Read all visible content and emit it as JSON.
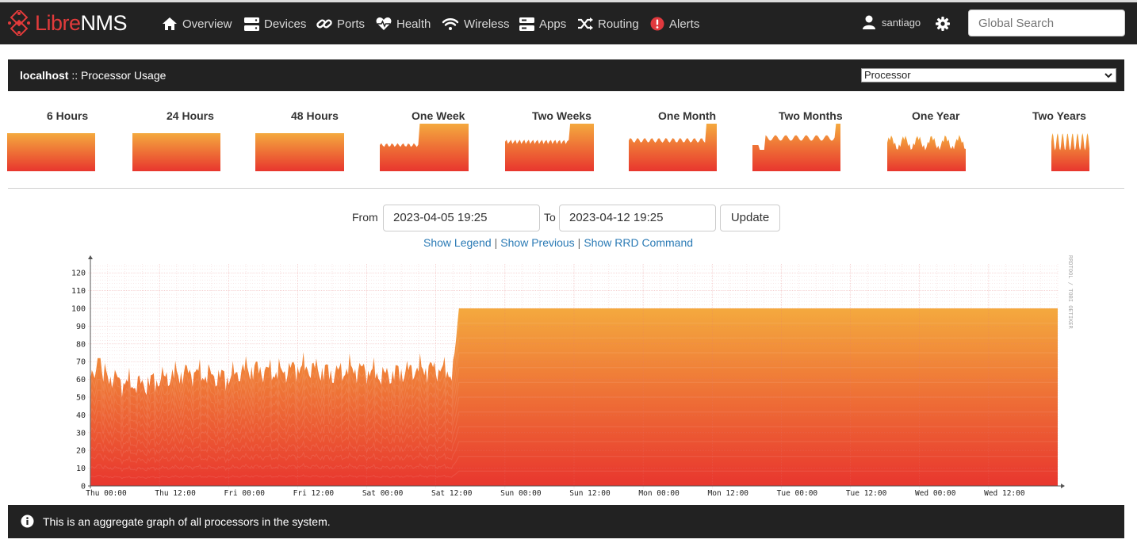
{
  "navbar": {
    "brand_libre": "Libre",
    "brand_nms": "NMS",
    "items": [
      {
        "label": "Overview",
        "icon": "home-icon"
      },
      {
        "label": "Devices",
        "icon": "server-icon"
      },
      {
        "label": "Ports",
        "icon": "link-icon"
      },
      {
        "label": "Health",
        "icon": "heartbeat-icon"
      },
      {
        "label": "Wireless",
        "icon": "wifi-icon"
      },
      {
        "label": "Apps",
        "icon": "apps-icon"
      },
      {
        "label": "Routing",
        "icon": "random-icon"
      },
      {
        "label": "Alerts",
        "icon": "alert-icon"
      }
    ],
    "user": "santiago",
    "search_placeholder": "Global Search"
  },
  "panel": {
    "host": "localhost",
    "separator": " :: ",
    "title": "Processor Usage",
    "select_value": "Processor"
  },
  "periods": [
    "6 Hours",
    "24 Hours",
    "48 Hours",
    "One Week",
    "Two Weeks",
    "One Month",
    "Two Months",
    "One Year",
    "Two Years"
  ],
  "form": {
    "from_label": "From",
    "from_value": "2023-04-05 19:25",
    "to_label": "To",
    "to_value": "2023-04-12 19:25",
    "update_label": "Update"
  },
  "links": {
    "legend": "Show Legend",
    "previous": "Show Previous",
    "rrd": "Show RRD Command",
    "sep": "|"
  },
  "chart_data": {
    "type": "area",
    "x_tick_labels": [
      "Thu 00:00",
      "Thu 12:00",
      "Fri 00:00",
      "Fri 12:00",
      "Sat 00:00",
      "Sat 12:00",
      "Sun 00:00",
      "Sun 12:00",
      "Mon 00:00",
      "Mon 12:00",
      "Tue 00:00",
      "Tue 12:00",
      "Wed 00:00",
      "Wed 12:00"
    ],
    "y_ticks": [
      0,
      10,
      20,
      30,
      40,
      50,
      60,
      70,
      80,
      90,
      100,
      110,
      120
    ],
    "ylim": [
      0,
      125
    ],
    "grid": true,
    "watermark": "RRDTOOL / TOBI OETIKER",
    "stacked_layers": 12,
    "colors": {
      "top": "#f4a93e",
      "bottom": "#e8362e"
    },
    "series_total": {
      "x_hours": [
        0,
        3,
        6,
        9,
        12,
        15,
        18,
        21,
        24,
        27,
        30,
        33,
        36,
        39,
        42,
        45,
        48,
        51,
        54,
        57,
        60,
        63,
        64,
        66,
        72,
        96,
        120,
        144,
        168
      ],
      "values": [
        60,
        62,
        58,
        57,
        60,
        63,
        64,
        62,
        61,
        66,
        65,
        64,
        67,
        66,
        63,
        66,
        65,
        62,
        64,
        66,
        66,
        64,
        100,
        100,
        100,
        100,
        100,
        100,
        100
      ]
    }
  },
  "info": {
    "text": "This is an aggregate graph of all processors in the system."
  }
}
